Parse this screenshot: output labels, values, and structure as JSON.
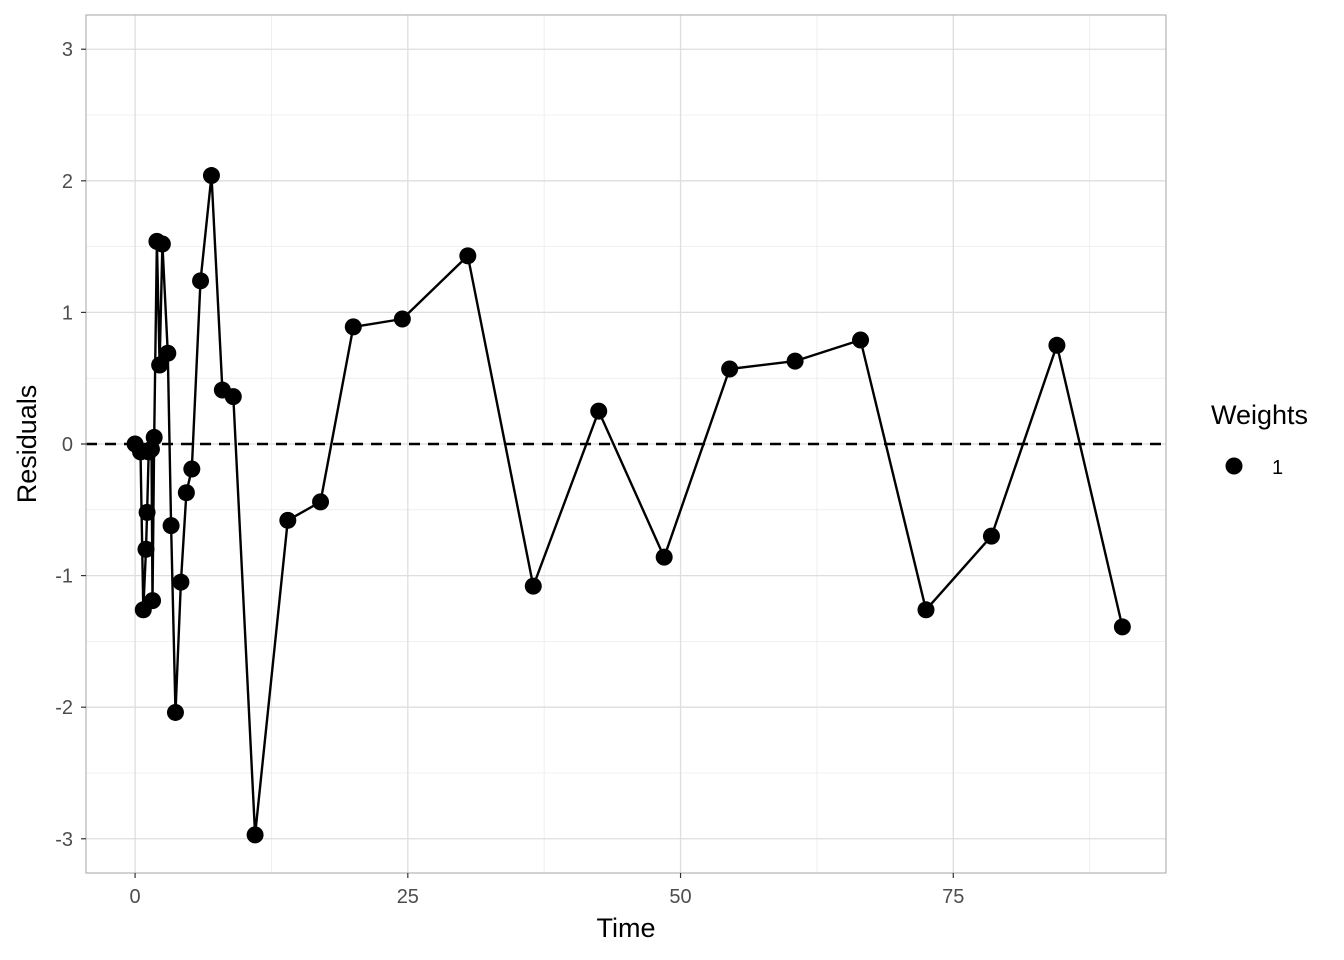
{
  "chart_data": {
    "type": "line",
    "xlabel": "Time",
    "ylabel": "Residuals",
    "xlim": [
      -4.5,
      94.5
    ],
    "ylim": [
      -3.26,
      3.26
    ],
    "x_ticks": [
      0,
      25,
      50,
      75
    ],
    "x_tick_labels": [
      "0",
      "25",
      "50",
      "75"
    ],
    "y_ticks": [
      -3,
      -2,
      -1,
      0,
      1,
      2,
      3
    ],
    "y_tick_labels": [
      "-3",
      "-2",
      "-1",
      "0",
      "1",
      "2",
      "3"
    ],
    "grid": true,
    "reference_line": {
      "y": 0,
      "style": "dashed"
    },
    "legend": {
      "title": "Weights",
      "placement": "right",
      "entries": [
        "1"
      ]
    },
    "series": [
      {
        "x": [
          0,
          0.5,
          0.75,
          1,
          1.1,
          1.25,
          1.5,
          1.6,
          1.75,
          2,
          2.25,
          2.5,
          3,
          3.3,
          3.7,
          4.2,
          4.7,
          5.2,
          6,
          7,
          8,
          9,
          11,
          14,
          17,
          20,
          24.5,
          30.5,
          36.5,
          42.5,
          48.5,
          54.5,
          60.5,
          66.5,
          72.5,
          78.5,
          84.5,
          90.5
        ],
        "values": [
          0,
          -0.06,
          -1.26,
          -0.8,
          -0.52,
          -0.06,
          -0.04,
          -1.19,
          0.05,
          1.54,
          0.6,
          1.52,
          0.69,
          -0.62,
          -2.04,
          -1.05,
          -0.37,
          -0.19,
          1.24,
          2.04,
          0.41,
          0.36,
          -2.97,
          -0.58,
          -0.44,
          0.89,
          0.95,
          1.43,
          -1.08,
          0.25,
          -0.86,
          0.57,
          0.63,
          0.79,
          -1.26,
          -0.7,
          0.75,
          -1.39
        ]
      }
    ],
    "colors": {
      "series": "#000000",
      "grid": "#ebebeb",
      "panel_border": "#b3b3b3",
      "tick_text": "#4d4d4d"
    }
  }
}
